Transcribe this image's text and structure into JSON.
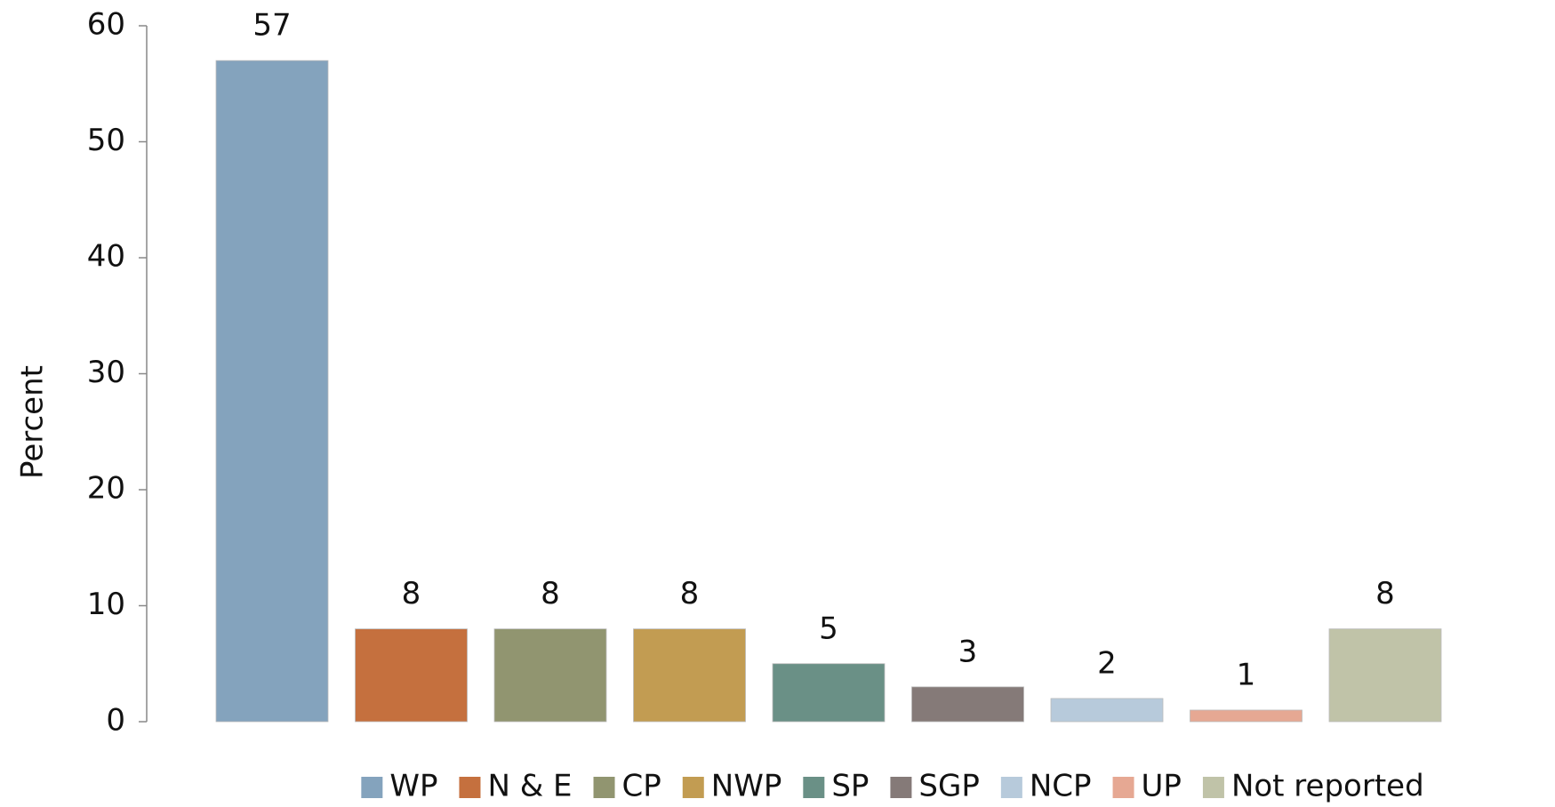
{
  "chart_data": {
    "type": "bar",
    "y_label": "Percent",
    "categories": [
      "WP",
      "N & E",
      "CP",
      "NWP",
      "SP",
      "SGP",
      "NCP",
      "UP",
      "Not reported"
    ],
    "values": [
      57,
      8,
      8,
      8,
      5,
      3,
      2,
      1,
      8
    ],
    "colors": [
      "#84a3bd",
      "#c5703e",
      "#919570",
      "#c29c52",
      "#6a9086",
      "#857a78",
      "#b7cadb",
      "#e6a893",
      "#c0c3a8"
    ],
    "ylim": [
      0,
      60
    ],
    "yticks": [
      0,
      10,
      20,
      30,
      40,
      50,
      60
    ],
    "grid": false,
    "legend": "bottom"
  }
}
